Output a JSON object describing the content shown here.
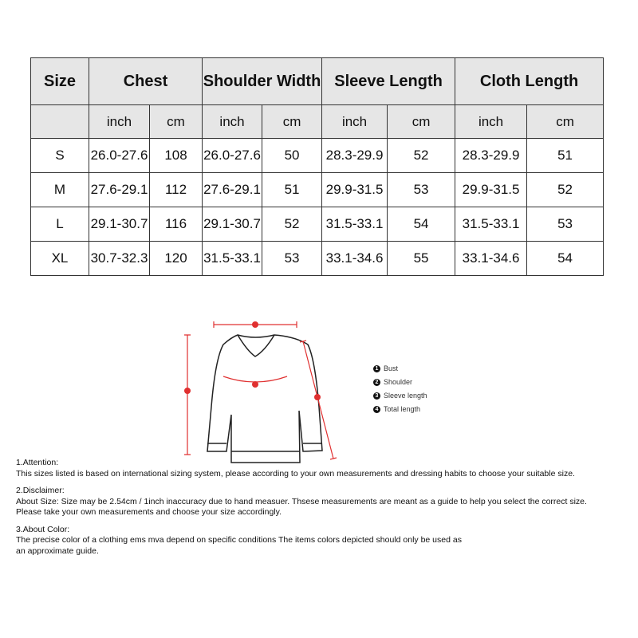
{
  "table": {
    "headers": [
      "Size",
      "Chest",
      "Shoulder Width",
      "Sleeve Length",
      "Cloth Length"
    ],
    "units": [
      "inch",
      "cm",
      "inch",
      "cm",
      "inch",
      "cm",
      "inch",
      "cm"
    ],
    "rows": [
      [
        "S",
        "26.0-27.6",
        "108",
        "26.0-27.6",
        "50",
        "28.3-29.9",
        "52",
        "28.3-29.9",
        "51"
      ],
      [
        "M",
        "27.6-29.1",
        "112",
        "27.6-29.1",
        "51",
        "29.9-31.5",
        "53",
        "29.9-31.5",
        "52"
      ],
      [
        "L",
        "29.1-30.7",
        "116",
        "29.1-30.7",
        "52",
        "31.5-33.1",
        "54",
        "31.5-33.1",
        "53"
      ],
      [
        "XL",
        "30.7-32.3",
        "120",
        "31.5-33.1",
        "53",
        "33.1-34.6",
        "55",
        "33.1-34.6",
        "54"
      ]
    ]
  },
  "diagram": {
    "legend": [
      {
        "num": "1",
        "label": "Bust"
      },
      {
        "num": "2",
        "label": "Shoulder"
      },
      {
        "num": "3",
        "label": "Sleeve length"
      },
      {
        "num": "4",
        "label": "Total length"
      }
    ],
    "measure_color": "#e03030"
  },
  "notes": [
    {
      "title": "1.Attention:",
      "lines": [
        "This sizes listed is based on international sizing system, please according to your own measurements and dressing habits to choose your suitable size."
      ]
    },
    {
      "title": "2.Disclaimer:",
      "lines": [
        "About Size: Size may be 2.54cm / 1inch inaccuracy due to hand measuer. Thsese measurements are meant as a guide to help you select the correct size.",
        "Please take your own measurements and choose your size accordingly."
      ]
    },
    {
      "title": "3.About Color:",
      "lines": [
        "The precise color of a clothing ems mva depend on specific conditions The items colors depicted should only be used as",
        "an approximate guide."
      ]
    }
  ]
}
